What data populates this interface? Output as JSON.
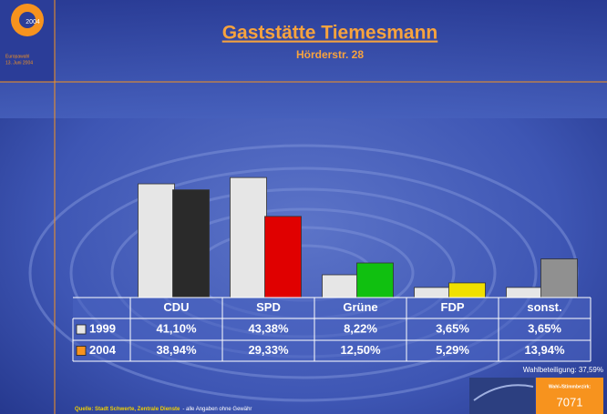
{
  "header": {
    "title": "Gaststätte Tiemesmann",
    "subtitle": "Hörderstr. 28"
  },
  "logo": {
    "year": "2004",
    "caption": [
      "Europawahl",
      "13. Juni 2004"
    ]
  },
  "chart_data": {
    "type": "bar",
    "categories": [
      "CDU",
      "SPD",
      "Grüne",
      "FDP",
      "sonst."
    ],
    "series": [
      {
        "name": "1999",
        "color": "#e6e6e6",
        "values": [
          41.1,
          43.38,
          8.22,
          3.65,
          3.65
        ],
        "value_labels": [
          "41,10%",
          "43,38%",
          "8,22%",
          "3,65%",
          "3,65%"
        ]
      },
      {
        "name": "2004",
        "color": "#f7931e",
        "point_colors": [
          "#2a2a2a",
          "#e00000",
          "#10c010",
          "#f0e000",
          "#909090"
        ],
        "values": [
          38.94,
          29.33,
          12.5,
          5.29,
          13.94
        ],
        "value_labels": [
          "38,94%",
          "29,33%",
          "12,50%",
          "5,29%",
          "13,94%"
        ]
      }
    ]
  },
  "turnout": "Wahlbeteiligung: 37,59%",
  "footer": {
    "source": "Quelle: Stadt Schwerte, Zentrale Dienste",
    "disclaimer": "- alle Angaben ohne Gewähr"
  },
  "district": {
    "label": "Wahl-/Stimmbezirk:",
    "number": "7071"
  }
}
